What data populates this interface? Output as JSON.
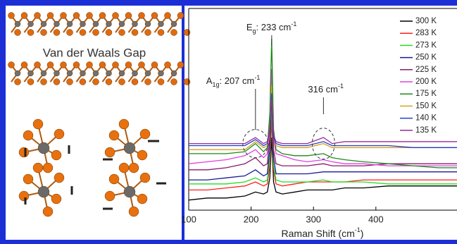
{
  "caption": "Van der Waals Gap",
  "chart_data": {
    "type": "line",
    "x_label_parts": [
      "Raman Shift (cm",
      "-1",
      ")"
    ],
    "annotations": [
      {
        "text": "E",
        "sub": "g",
        "rest": ": 233 cm",
        "sup": "-1",
        "x": 233
      },
      {
        "text": "A",
        "sub": "1g",
        "rest": ": 207 cm",
        "sup": "-1",
        "x": 207
      },
      {
        "text": "316 cm",
        "sup": "-1",
        "x": 316
      }
    ],
    "x": [
      100,
      130,
      160,
      190,
      207,
      220,
      226,
      230,
      233,
      236,
      240,
      250,
      270,
      290,
      316,
      330,
      350,
      380,
      420,
      460,
      500,
      530
    ],
    "xlim": [
      100,
      530
    ],
    "xticks": [
      100,
      200,
      300,
      400
    ],
    "ylim": [
      0,
      100
    ],
    "legend": "upper right",
    "series": [
      {
        "name": "300 K",
        "color": "#000000",
        "values": [
          5,
          6,
          6,
          7,
          9,
          8,
          9,
          16,
          36,
          14,
          9,
          8,
          9,
          10,
          10,
          10,
          11,
          11,
          12,
          12,
          12,
          12
        ]
      },
      {
        "name": "283 K",
        "color": "#ff2020",
        "values": [
          10,
          10,
          11,
          12,
          14,
          12,
          13,
          22,
          45,
          20,
          13,
          12,
          13,
          14,
          14,
          14,
          14,
          15,
          15,
          15,
          15,
          15
        ]
      },
      {
        "name": "273 K",
        "color": "#22e022",
        "values": [
          13,
          13,
          13,
          14,
          16,
          14,
          15,
          26,
          52,
          22,
          15,
          14,
          14,
          14,
          15,
          14,
          14,
          14,
          13,
          13,
          13,
          13
        ]
      },
      {
        "name": "250 K",
        "color": "#1a1a9c",
        "values": [
          15,
          15,
          16,
          17,
          20,
          17,
          18,
          30,
          58,
          26,
          18,
          18,
          18,
          18,
          19,
          19,
          19,
          19,
          19,
          19,
          19,
          19
        ]
      },
      {
        "name": "225 K",
        "color": "#8b1a6b",
        "values": [
          20,
          20,
          21,
          23,
          26,
          22,
          23,
          36,
          66,
          30,
          23,
          22,
          22,
          22,
          23,
          22,
          22,
          22,
          23,
          23,
          23,
          23
        ]
      },
      {
        "name": "200 K",
        "color": "#e040e0",
        "values": [
          23,
          24,
          25,
          27,
          30,
          26,
          28,
          42,
          70,
          36,
          28,
          27,
          25,
          24,
          25,
          24,
          23,
          23,
          22,
          22,
          22,
          22
        ]
      },
      {
        "name": "175 K",
        "color": "#1a8c1a",
        "values": [
          28,
          28,
          28,
          29,
          33,
          29,
          31,
          48,
          85,
          40,
          30,
          28,
          27,
          27,
          28,
          26,
          25,
          24,
          23,
          22,
          21,
          21
        ]
      },
      {
        "name": "150 K",
        "color": "#d8a020",
        "values": [
          30,
          30,
          30,
          30,
          34,
          31,
          32,
          40,
          62,
          36,
          32,
          31,
          31,
          31,
          33,
          31,
          31,
          31,
          31,
          31,
          31,
          31
        ]
      },
      {
        "name": "140 K",
        "color": "#2040d0",
        "values": [
          32,
          32,
          32,
          32,
          35,
          32,
          33,
          40,
          58,
          36,
          33,
          32,
          32,
          32,
          34,
          32,
          32,
          32,
          32,
          31,
          31,
          31
        ]
      },
      {
        "name": "135 K",
        "color": "#9a2a9a",
        "values": [
          33,
          33,
          33,
          33,
          36,
          33,
          34,
          40,
          55,
          37,
          34,
          33,
          33,
          33,
          36,
          33,
          34,
          34,
          34,
          34,
          34,
          34
        ]
      }
    ]
  }
}
